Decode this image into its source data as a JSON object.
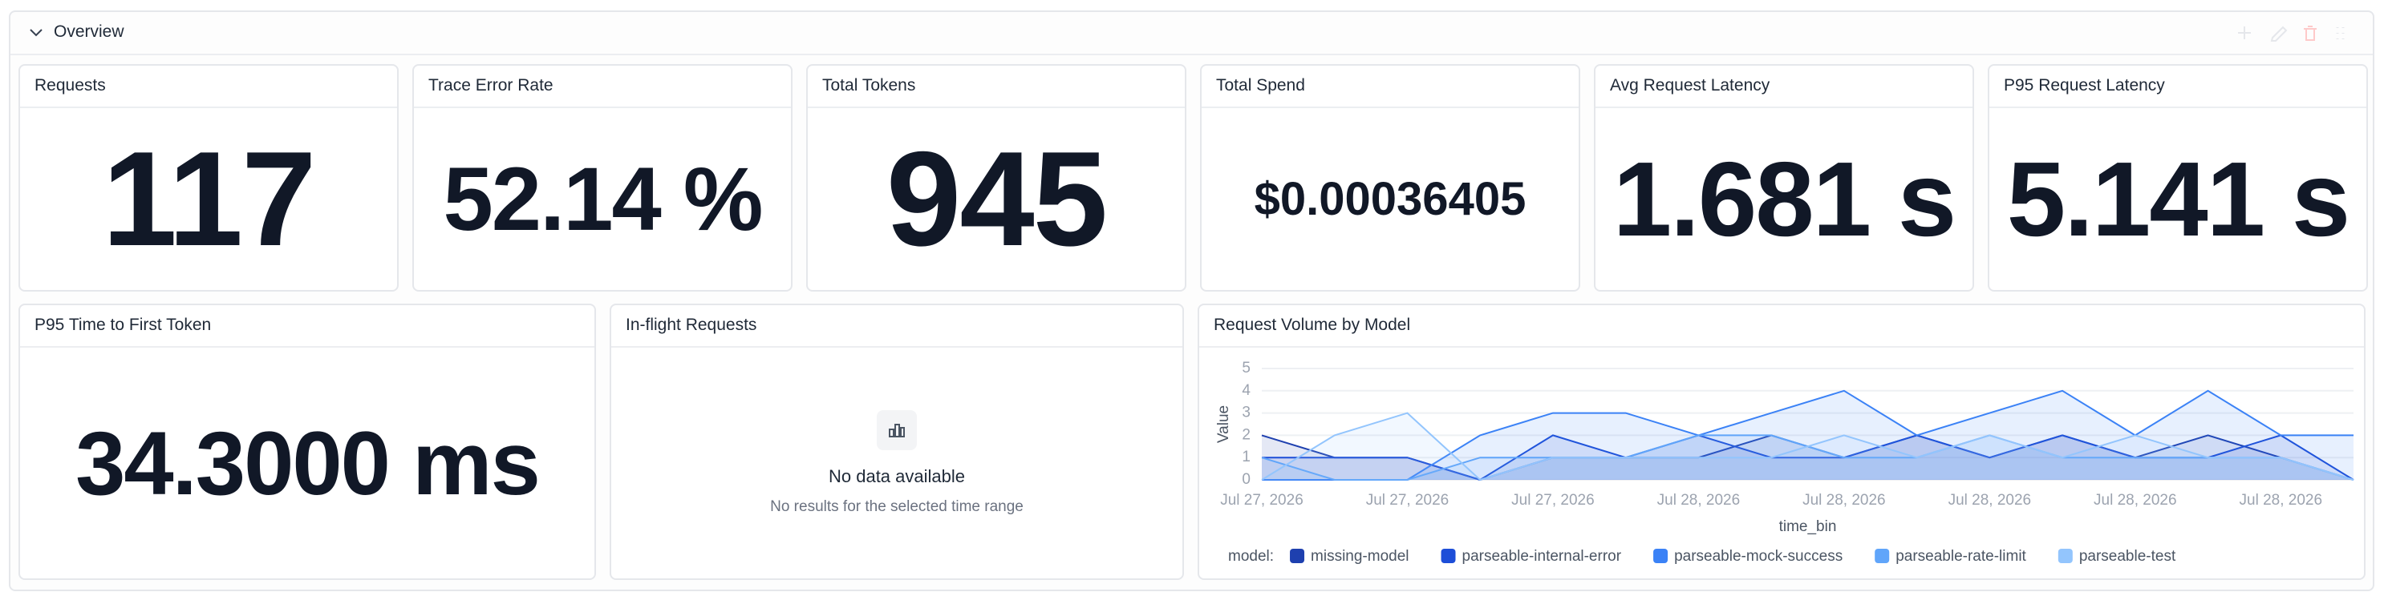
{
  "section": {
    "title": "Overview"
  },
  "cards": [
    {
      "title": "Requests",
      "value": "117"
    },
    {
      "title": "Trace Error Rate",
      "value": "52.14 %"
    },
    {
      "title": "Total Tokens",
      "value": "945"
    },
    {
      "title": "Total Spend",
      "value": "$0.00036405"
    },
    {
      "title": "Avg Request Latency",
      "value": "1.681 s"
    },
    {
      "title": "P95 Request Latency",
      "value": "5.141 s"
    },
    {
      "title": "P95 Time to First Token",
      "value": "34.3000 ms"
    }
  ],
  "inflight": {
    "title": "In-flight Requests",
    "empty_title": "No data available",
    "empty_text": "No results for the selected time range"
  },
  "chart_data": {
    "type": "area",
    "title": "Request Volume by Model",
    "x_label": "time_bin",
    "y_label": "Value",
    "legend_title": "model:",
    "categories": [
      "Jul 27, 2026",
      null,
      "Jul 27, 2026",
      null,
      "Jul 27, 2026",
      null,
      "Jul 28, 2026",
      null,
      "Jul 28, 2026",
      null,
      "Jul 28, 2026",
      null,
      "Jul 28, 2026",
      null,
      "Jul 28, 2026",
      null
    ],
    "series": [
      {
        "name": "missing-model",
        "color": "#1e40af",
        "values": [
          2,
          1,
          1,
          0,
          1,
          1,
          1,
          2,
          1,
          2,
          1,
          2,
          1,
          2,
          1,
          0
        ]
      },
      {
        "name": "parseable-internal-error",
        "color": "#1d4ed8",
        "values": [
          1,
          1,
          1,
          0,
          2,
          1,
          2,
          1,
          1,
          2,
          1,
          2,
          1,
          1,
          2,
          0
        ]
      },
      {
        "name": "parseable-mock-success",
        "color": "#3b82f6",
        "values": [
          0,
          0,
          0,
          2,
          3,
          3,
          2,
          3,
          4,
          2,
          3,
          4,
          2,
          4,
          2,
          2
        ]
      },
      {
        "name": "parseable-rate-limit",
        "color": "#60a5fa",
        "values": [
          1,
          0,
          0,
          1,
          1,
          1,
          2,
          2,
          1,
          1,
          2,
          1,
          1,
          1,
          1,
          0
        ]
      },
      {
        "name": "parseable-test",
        "color": "#93c5fd",
        "values": [
          0,
          2,
          3,
          0,
          1,
          1,
          1,
          1,
          2,
          1,
          2,
          1,
          2,
          1,
          1,
          0
        ]
      }
    ],
    "ylim": [
      0,
      5
    ],
    "yticks": [
      0,
      1,
      2,
      3,
      4,
      5
    ],
    "grid": true
  }
}
